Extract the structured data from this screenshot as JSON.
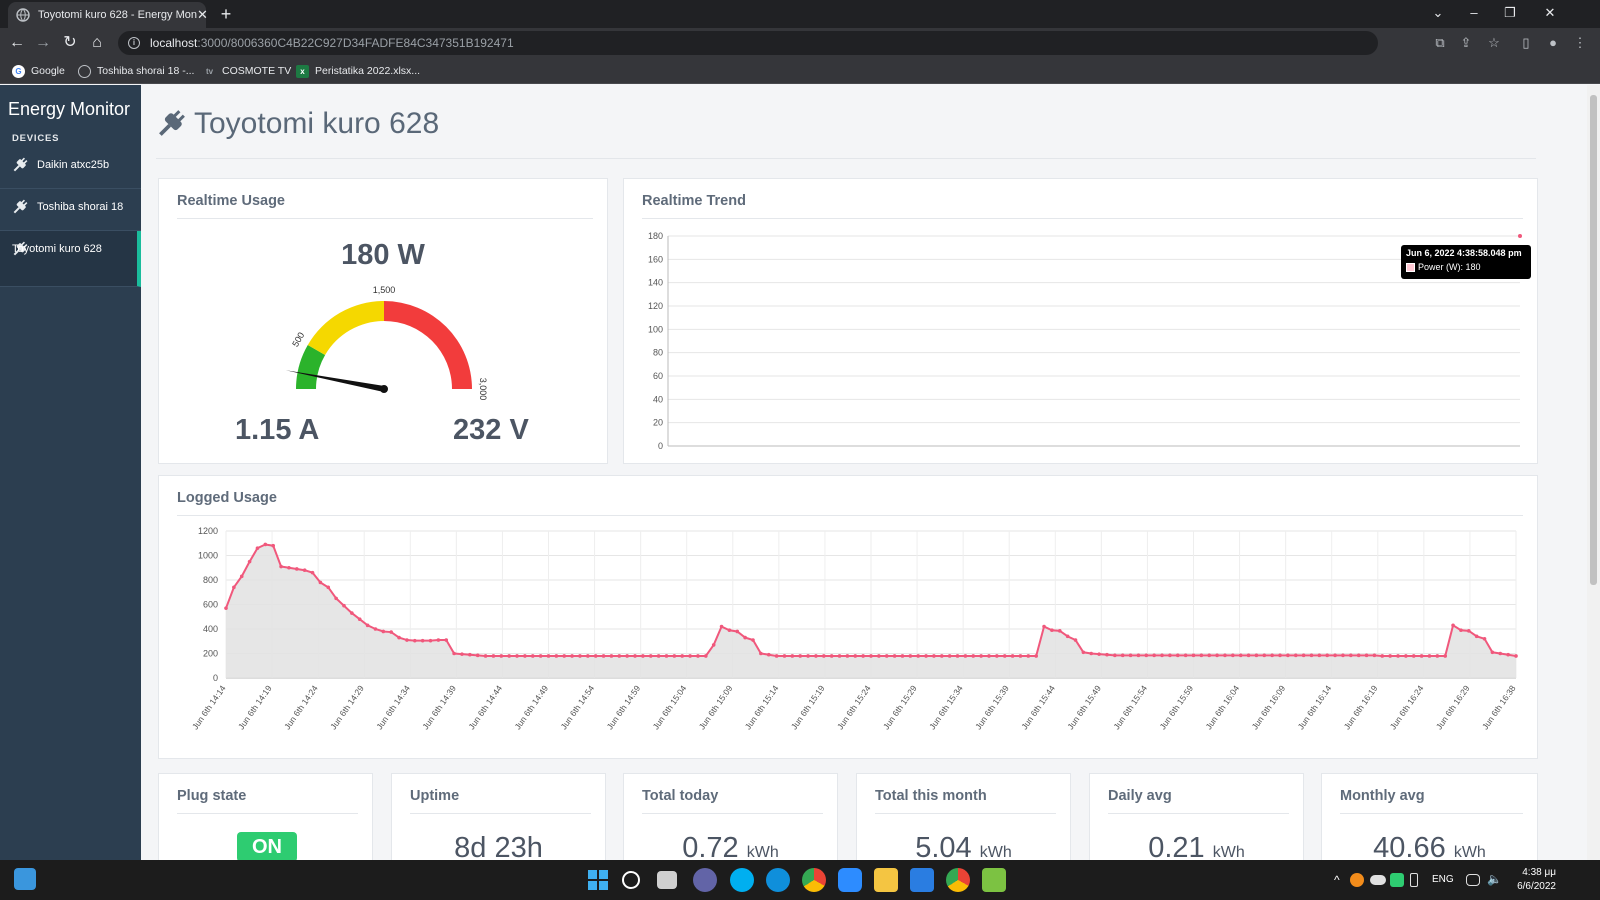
{
  "browser": {
    "tab_title": "Toyotomi kuro 628 - Energy Mon",
    "url_host": "localhost",
    "url_path": ":3000/8006360C4B22C927D34FADFE84C347351B192471",
    "bookmarks": [
      {
        "label": "Google",
        "icon": "google-icon"
      },
      {
        "label": "Toshiba shorai 18 -...",
        "icon": "globe-icon"
      },
      {
        "label": "COSMOTE TV",
        "icon": "cosmote-icon"
      },
      {
        "label": "Peristatika 2022.xlsx...",
        "icon": "excel-icon"
      }
    ]
  },
  "sidebar": {
    "brand": "Energy Monitor",
    "heading": "DEVICES",
    "items": [
      {
        "label": "Daikin atxc25b"
      },
      {
        "label": "Toshiba shorai 18"
      },
      {
        "label": "Toyotomi kuro 628"
      }
    ]
  },
  "page": {
    "title": "Toyotomi kuro 628"
  },
  "realtime_usage": {
    "title": "Realtime Usage",
    "power": "180 W",
    "current": "1.15 A",
    "voltage": "232 V",
    "gauge": {
      "min": 0,
      "max": 3000,
      "value": 180,
      "bands": [
        {
          "from": 0,
          "to": 500,
          "color": "#2bb32b"
        },
        {
          "from": 500,
          "to": 1500,
          "color": "#f5d800"
        },
        {
          "from": 1500,
          "to": 3000,
          "color": "#f23c3c"
        }
      ],
      "tick_labels": [
        "500",
        "1,500",
        "3,000"
      ]
    }
  },
  "realtime_trend": {
    "title": "Realtime Trend",
    "tooltip": {
      "title": "Jun 6, 2022 4:38:58.048 pm",
      "series_label": "Power (W): 180"
    }
  },
  "logged_usage": {
    "title": "Logged Usage"
  },
  "stats": [
    {
      "title": "Plug state",
      "value": "ON",
      "unit": ""
    },
    {
      "title": "Uptime",
      "value": "8d 23h",
      "unit": ""
    },
    {
      "title": "Total today",
      "value": "0.72",
      "unit": "kWh"
    },
    {
      "title": "Total this month",
      "value": "5.04",
      "unit": "kWh"
    },
    {
      "title": "Daily avg",
      "value": "0.21",
      "unit": "kWh"
    },
    {
      "title": "Monthly avg",
      "value": "40.66",
      "unit": "kWh"
    }
  ],
  "taskbar": {
    "lang": "ENG",
    "time": "4:38 μμ",
    "date": "6/6/2022"
  },
  "colors": {
    "sidebar": "#2c3e50",
    "accent": "#1abc9c",
    "series": "#f0587c",
    "on_badge": "#2ecc71"
  },
  "chart_data": [
    {
      "type": "line",
      "name": "realtime-trend",
      "title": "Realtime Trend",
      "xlabel": "",
      "ylabel": "",
      "ylim": [
        0,
        180
      ],
      "yticks": [
        0,
        20,
        40,
        60,
        80,
        100,
        120,
        140,
        160,
        180
      ],
      "series": [
        {
          "name": "Power (W)",
          "x": [
            "Jun 6, 2022 4:38:58.048 pm"
          ],
          "values": [
            180
          ]
        }
      ],
      "grid": true
    },
    {
      "type": "area",
      "name": "logged-usage",
      "title": "Logged Usage",
      "xlabel": "",
      "ylabel": "",
      "ylim": [
        0,
        1200
      ],
      "yticks": [
        0,
        200,
        400,
        600,
        800,
        1000,
        1200
      ],
      "x_tick_labels": [
        "Jun 6th 14:14",
        "Jun 6th 14:19",
        "Jun 6th 14:24",
        "Jun 6th 14:29",
        "Jun 6th 14:34",
        "Jun 6th 14:39",
        "Jun 6th 14:44",
        "Jun 6th 14:49",
        "Jun 6th 14:54",
        "Jun 6th 14:59",
        "Jun 6th 15:04",
        "Jun 6th 15:09",
        "Jun 6th 15:14",
        "Jun 6th 15:19",
        "Jun 6th 15:24",
        "Jun 6th 15:29",
        "Jun 6th 15:34",
        "Jun 6th 15:39",
        "Jun 6th 15:44",
        "Jun 6th 15:49",
        "Jun 6th 15:54",
        "Jun 6th 15:59",
        "Jun 6th 16:04",
        "Jun 6th 16:09",
        "Jun 6th 16:14",
        "Jun 6th 16:19",
        "Jun 6th 16:24",
        "Jun 6th 16:29",
        "Jun 6th 16:38"
      ],
      "series": [
        {
          "values": [
            570,
            740,
            830,
            950,
            1060,
            1090,
            1080,
            910,
            900,
            890,
            880,
            860,
            780,
            740,
            650,
            590,
            530,
            480,
            430,
            400,
            380,
            375,
            330,
            310,
            305,
            305,
            305,
            310,
            310,
            200,
            195,
            190,
            185,
            180,
            180,
            180,
            180,
            180,
            180,
            180,
            180,
            180,
            180,
            180,
            180,
            180,
            180,
            180,
            180,
            180,
            180,
            180,
            180,
            180,
            180,
            180,
            180,
            180,
            180,
            180,
            180,
            180,
            270,
            420,
            390,
            380,
            330,
            310,
            200,
            190,
            180,
            180,
            180,
            180,
            180,
            180,
            180,
            180,
            180,
            180,
            180,
            180,
            180,
            180,
            180,
            180,
            180,
            180,
            180,
            180,
            180,
            180,
            180,
            180,
            180,
            180,
            180,
            180,
            180,
            180,
            180,
            180,
            180,
            180,
            420,
            390,
            385,
            340,
            310,
            210,
            200,
            195,
            190,
            185,
            185,
            185,
            185,
            185,
            185,
            185,
            185,
            185,
            185,
            185,
            185,
            185,
            185,
            185,
            185,
            185,
            185,
            185,
            185,
            185,
            185,
            185,
            185,
            185,
            185,
            185,
            185,
            185,
            185,
            185,
            185,
            185,
            185,
            180,
            180,
            180,
            180,
            180,
            180,
            180,
            180,
            180,
            430,
            390,
            385,
            340,
            320,
            210,
            200,
            190,
            180
          ]
        }
      ],
      "grid": true
    }
  ]
}
